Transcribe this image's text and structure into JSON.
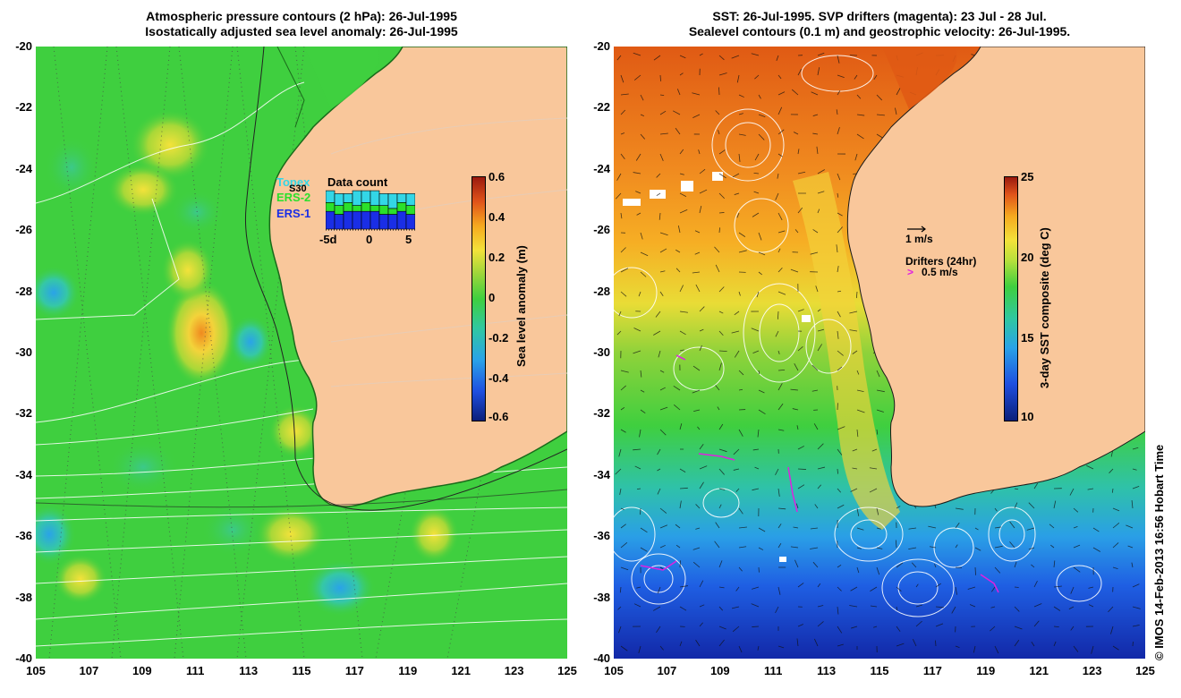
{
  "left_panel": {
    "title_line1": "Atmospheric pressure contours (2 hPa): 26-Jul-1995",
    "title_line2": "Isostatically adjusted sea level anomaly: 26-Jul-1995",
    "colorbar": {
      "label": "Sea level anomaly (m)",
      "ticks": [
        "0.6",
        "0.4",
        "0.2",
        "0",
        "-0.2",
        "-0.4",
        "-0.6"
      ]
    },
    "data_count": {
      "title": "Data count",
      "satellites": [
        {
          "name": "Topex",
          "color": "#33d6e6"
        },
        {
          "name": "ERS-2",
          "color": "#2be02b"
        },
        {
          "name": "ERS-1",
          "color": "#1a2ee6"
        }
      ],
      "overlay_code": "S30",
      "x_ticks": [
        "-5d",
        "0",
        "5"
      ],
      "bars": [
        {
          "topex": 4,
          "ers2": 3,
          "ers1": 6
        },
        {
          "topex": 4,
          "ers2": 3,
          "ers1": 5
        },
        {
          "topex": 3,
          "ers2": 3,
          "ers1": 6
        },
        {
          "topex": 5,
          "ers2": 2,
          "ers1": 6
        },
        {
          "topex": 4,
          "ers2": 3,
          "ers1": 6
        },
        {
          "topex": 5,
          "ers2": 2,
          "ers1": 6
        },
        {
          "topex": 4,
          "ers2": 3,
          "ers1": 5
        },
        {
          "topex": 5,
          "ers2": 2,
          "ers1": 5
        },
        {
          "topex": 3,
          "ers2": 3,
          "ers1": 6
        },
        {
          "topex": 4,
          "ers2": 3,
          "ers1": 5
        }
      ]
    }
  },
  "right_panel": {
    "title_line1": "SST: 26-Jul-1995. SVP drifters (magenta): 23 Jul - 28 Jul.",
    "title_line2": "Sealevel contours (0.1 m) and geostrophic velocity: 26-Jul-1995.",
    "colorbar": {
      "label": "3-day SST composite (deg C)",
      "ticks": [
        "25",
        "20",
        "15",
        "10"
      ]
    },
    "velocity_scale_label": "1 m/s",
    "drifters_label": "Drifters (24hr)",
    "drifter_speed_marker": ">",
    "drifter_speed_label": "0.5 m/s"
  },
  "axes": {
    "lat_ticks": [
      "-20",
      "-22",
      "-24",
      "-26",
      "-28",
      "-30",
      "-32",
      "-34",
      "-36",
      "-38",
      "-40"
    ],
    "lon_ticks": [
      "105",
      "107",
      "109",
      "111",
      "113",
      "115",
      "117",
      "119",
      "121",
      "123",
      "125"
    ]
  },
  "credit": "© IMOS 14-Feb-2013 16:56 Hobart Time",
  "colors": {
    "land": "#f9c79b",
    "ocean_green": "#3fcf3f",
    "drifter": "#e020e0"
  }
}
